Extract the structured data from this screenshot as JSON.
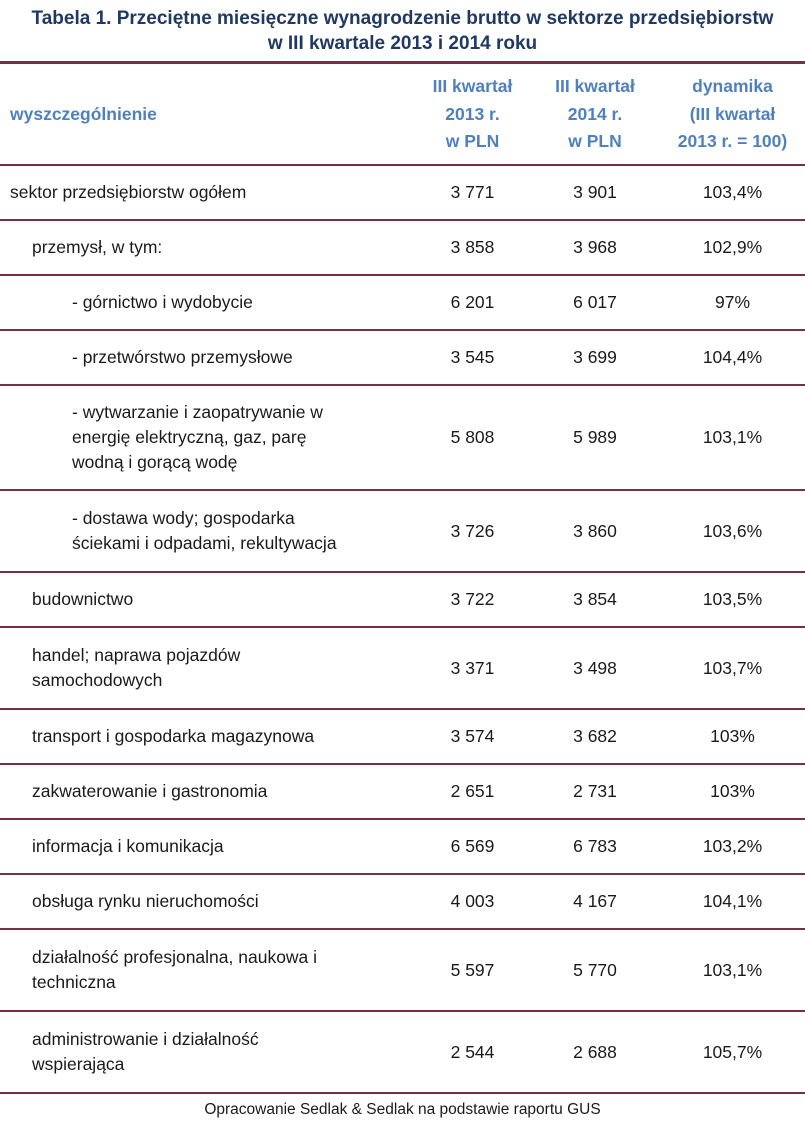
{
  "title": "Tabela 1. Przeciętne miesięczne wynagrodzenie brutto w sektorze przedsiębiorstw\nw III kwartale 2013 i 2014 roku",
  "colors": {
    "title": "#1f3864",
    "header": "#4f81bd",
    "rule": "#7c2d45",
    "text": "#1a1a1a"
  },
  "table": {
    "header": {
      "col_label": "wyszczególnienie",
      "col_2013": "III kwartał\n2013 r.\nw PLN",
      "col_2014": "III kwartał\n2014 r.\nw PLN",
      "col_dyn": "dynamika\n(III kwartał\n2013 r. = 100)"
    },
    "rows": [
      {
        "label": "sektor przedsiębiorstw ogółem",
        "v2013": "3 771",
        "v2014": "3 901",
        "dyn": "103,4%"
      },
      {
        "label": "przemysł, w tym:",
        "v2013": "3 858",
        "v2014": "3 968",
        "dyn": "102,9%"
      },
      {
        "label": "- górnictwo i wydobycie",
        "v2013": "6 201",
        "v2014": "6 017",
        "dyn": "97%"
      },
      {
        "label": "- przetwórstwo przemysłowe",
        "v2013": "3 545",
        "v2014": "3 699",
        "dyn": "104,4%"
      },
      {
        "label": "- wytwarzanie i zaopatrywanie w\nenergię elektryczną, gaz, parę\nwodną i gorącą wodę",
        "v2013": "5 808",
        "v2014": "5 989",
        "dyn": "103,1%"
      },
      {
        "label": "- dostawa wody; gospodarka\nściekami i odpadami, rekultywacja",
        "v2013": "3 726",
        "v2014": "3 860",
        "dyn": "103,6%"
      },
      {
        "label": "budownictwo",
        "v2013": "3 722",
        "v2014": "3 854",
        "dyn": "103,5%"
      },
      {
        "label": "handel; naprawa pojazdów\nsamochodowych",
        "v2013": "3 371",
        "v2014": "3 498",
        "dyn": "103,7%"
      },
      {
        "label": "transport i gospodarka magazynowa",
        "v2013": "3 574",
        "v2014": "3 682",
        "dyn": "103%"
      },
      {
        "label": "zakwaterowanie i gastronomia",
        "v2013": "2 651",
        "v2014": "2 731",
        "dyn": "103%"
      },
      {
        "label": "informacja i komunikacja",
        "v2013": "6 569",
        "v2014": "6 783",
        "dyn": "103,2%"
      },
      {
        "label": "obsługa rynku nieruchomości",
        "v2013": "4 003",
        "v2014": "4 167",
        "dyn": "104,1%"
      },
      {
        "label": "działalność profesjonalna, naukowa i\ntechniczna",
        "v2013": "5 597",
        "v2014": "5 770",
        "dyn": "103,1%"
      },
      {
        "label": "administrowanie i działalność\nwspierająca",
        "v2013": "2 544",
        "v2014": "2 688",
        "dyn": "105,7%"
      }
    ]
  },
  "footer": "Opracowanie Sedlak & Sedlak na podstawie raportu GUS"
}
